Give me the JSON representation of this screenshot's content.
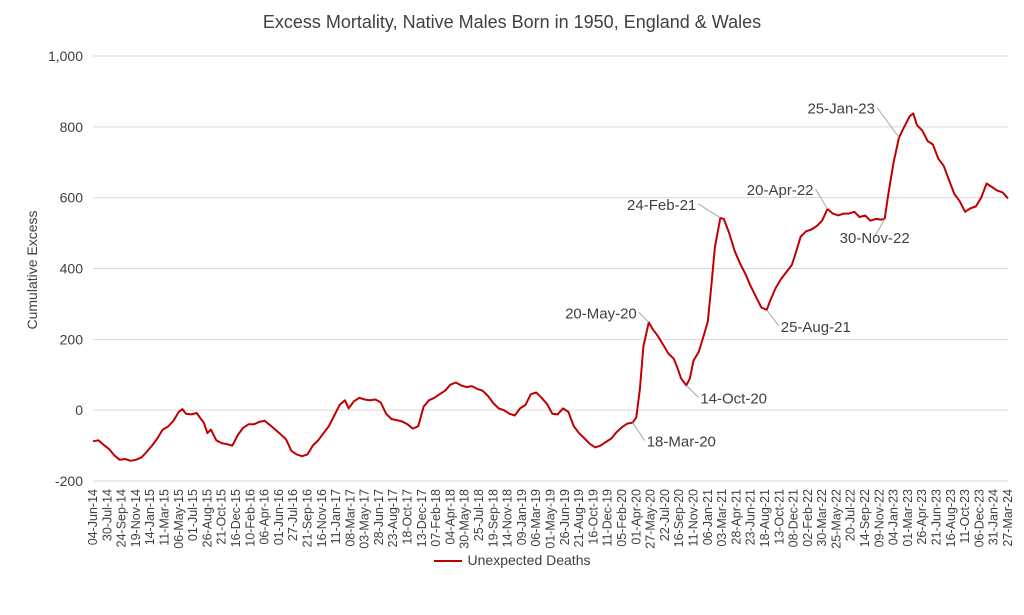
{
  "colors": {
    "series": "#c00000",
    "grid": "#d9d9d9",
    "text": "#404040",
    "leader": "#a6a6a6"
  },
  "chart_data": {
    "type": "line",
    "title": "Excess Mortality, Native Males Born in 1950, England & Wales",
    "xlabel": "",
    "ylabel": "Cumulative Excess",
    "ylim": [
      -200,
      1000
    ],
    "yticks": [
      -200,
      0,
      200,
      400,
      600,
      800,
      1000
    ],
    "ytick_labels": [
      "-200",
      "0",
      "200",
      "400",
      "600",
      "800",
      "1,000"
    ],
    "grid": true,
    "legend": "bottom",
    "x_range": [
      "2014-06-04",
      "2024-03-27"
    ],
    "x_tick_labels": [
      "04-Jun-14",
      "30-Jul-14",
      "24-Sep-14",
      "19-Nov-14",
      "14-Jan-15",
      "11-Mar-15",
      "06-May-15",
      "01-Jul-15",
      "26-Aug-15",
      "21-Oct-15",
      "16-Dec-15",
      "10-Feb-16",
      "06-Apr-16",
      "01-Jun-16",
      "27-Jul-16",
      "21-Sep-16",
      "16-Nov-16",
      "11-Jan-17",
      "08-Mar-17",
      "03-May-17",
      "28-Jun-17",
      "23-Aug-17",
      "18-Oct-17",
      "13-Dec-17",
      "07-Feb-18",
      "04-Apr-18",
      "30-May-18",
      "25-Jul-18",
      "19-Sep-18",
      "14-Nov-18",
      "09-Jan-19",
      "06-Mar-19",
      "01-May-19",
      "26-Jun-19",
      "21-Aug-19",
      "16-Oct-19",
      "11-Dec-19",
      "05-Feb-20",
      "01-Apr-20",
      "27-May-20",
      "22-Jul-20",
      "16-Sep-20",
      "11-Nov-20",
      "06-Jan-21",
      "03-Mar-21",
      "28-Apr-21",
      "23-Jun-21",
      "18-Aug-21",
      "13-Oct-21",
      "08-Dec-21",
      "02-Feb-22",
      "30-Mar-22",
      "25-May-22",
      "20-Jul-22",
      "14-Sep-22",
      "09-Nov-22",
      "04-Jan-23",
      "01-Mar-23",
      "26-Apr-23",
      "21-Jun-23",
      "16-Aug-23",
      "11-Oct-23",
      "06-Dec-23",
      "31-Jan-24",
      "27-Mar-24"
    ],
    "series": [
      {
        "name": "Unexpected Deaths",
        "points": [
          [
            "2014-06-04",
            -88
          ],
          [
            "2014-06-25",
            -85
          ],
          [
            "2014-07-16",
            -98
          ],
          [
            "2014-08-06",
            -110
          ],
          [
            "2014-08-27",
            -128
          ],
          [
            "2014-09-17",
            -140
          ],
          [
            "2014-10-08",
            -138
          ],
          [
            "2014-10-29",
            -143
          ],
          [
            "2014-11-19",
            -140
          ],
          [
            "2014-12-10",
            -134
          ],
          [
            "2014-12-31",
            -118
          ],
          [
            "2015-01-21",
            -100
          ],
          [
            "2015-02-11",
            -80
          ],
          [
            "2015-03-04",
            -55
          ],
          [
            "2015-03-25",
            -46
          ],
          [
            "2015-04-15",
            -30
          ],
          [
            "2015-05-06",
            -5
          ],
          [
            "2015-05-20",
            3
          ],
          [
            "2015-06-03",
            -10
          ],
          [
            "2015-06-24",
            -12
          ],
          [
            "2015-07-15",
            -8
          ],
          [
            "2015-07-29",
            -22
          ],
          [
            "2015-08-12",
            -35
          ],
          [
            "2015-08-26",
            -65
          ],
          [
            "2015-09-09",
            -55
          ],
          [
            "2015-09-30",
            -85
          ],
          [
            "2015-10-21",
            -93
          ],
          [
            "2015-11-11",
            -96
          ],
          [
            "2015-12-02",
            -100
          ],
          [
            "2015-12-23",
            -70
          ],
          [
            "2016-01-13",
            -50
          ],
          [
            "2016-02-03",
            -40
          ],
          [
            "2016-02-24",
            -40
          ],
          [
            "2016-03-16",
            -33
          ],
          [
            "2016-04-06",
            -30
          ],
          [
            "2016-04-27",
            -42
          ],
          [
            "2016-05-18",
            -55
          ],
          [
            "2016-06-08",
            -68
          ],
          [
            "2016-06-29",
            -82
          ],
          [
            "2016-07-20",
            -115
          ],
          [
            "2016-08-10",
            -125
          ],
          [
            "2016-08-31",
            -130
          ],
          [
            "2016-09-21",
            -125
          ],
          [
            "2016-10-12",
            -100
          ],
          [
            "2016-11-02",
            -85
          ],
          [
            "2016-11-23",
            -65
          ],
          [
            "2016-12-14",
            -45
          ],
          [
            "2017-01-04",
            -15
          ],
          [
            "2017-01-25",
            15
          ],
          [
            "2017-02-15",
            28
          ],
          [
            "2017-03-01",
            5
          ],
          [
            "2017-03-22",
            25
          ],
          [
            "2017-04-12",
            35
          ],
          [
            "2017-05-03",
            30
          ],
          [
            "2017-05-24",
            28
          ],
          [
            "2017-06-14",
            30
          ],
          [
            "2017-07-05",
            22
          ],
          [
            "2017-07-26",
            -10
          ],
          [
            "2017-08-16",
            -25
          ],
          [
            "2017-09-06",
            -28
          ],
          [
            "2017-09-27",
            -32
          ],
          [
            "2017-10-18",
            -40
          ],
          [
            "2017-11-08",
            -52
          ],
          [
            "2017-11-29",
            -45
          ],
          [
            "2017-12-20",
            10
          ],
          [
            "2018-01-10",
            28
          ],
          [
            "2018-01-31",
            35
          ],
          [
            "2018-02-21",
            45
          ],
          [
            "2018-03-14",
            55
          ],
          [
            "2018-04-04",
            72
          ],
          [
            "2018-04-25",
            78
          ],
          [
            "2018-05-16",
            70
          ],
          [
            "2018-06-06",
            65
          ],
          [
            "2018-06-27",
            68
          ],
          [
            "2018-07-18",
            60
          ],
          [
            "2018-08-08",
            55
          ],
          [
            "2018-08-29",
            40
          ],
          [
            "2018-09-19",
            20
          ],
          [
            "2018-10-10",
            5
          ],
          [
            "2018-10-31",
            0
          ],
          [
            "2018-11-21",
            -10
          ],
          [
            "2018-12-12",
            -15
          ],
          [
            "2019-01-02",
            5
          ],
          [
            "2019-01-23",
            15
          ],
          [
            "2019-02-13",
            45
          ],
          [
            "2019-03-06",
            50
          ],
          [
            "2019-03-27",
            35
          ],
          [
            "2019-04-17",
            18
          ],
          [
            "2019-05-08",
            -10
          ],
          [
            "2019-05-29",
            -12
          ],
          [
            "2019-06-19",
            5
          ],
          [
            "2019-07-10",
            -5
          ],
          [
            "2019-07-31",
            -45
          ],
          [
            "2019-08-21",
            -65
          ],
          [
            "2019-09-11",
            -80
          ],
          [
            "2019-10-02",
            -95
          ],
          [
            "2019-10-23",
            -105
          ],
          [
            "2019-11-13",
            -100
          ],
          [
            "2019-12-04",
            -90
          ],
          [
            "2019-12-25",
            -80
          ],
          [
            "2020-01-15",
            -62
          ],
          [
            "2020-02-05",
            -48
          ],
          [
            "2020-02-26",
            -38
          ],
          [
            "2020-03-18",
            -35
          ],
          [
            "2020-04-01",
            -20
          ],
          [
            "2020-04-15",
            60
          ],
          [
            "2020-04-29",
            180
          ],
          [
            "2020-05-20",
            248
          ],
          [
            "2020-06-03",
            230
          ],
          [
            "2020-06-24",
            210
          ],
          [
            "2020-07-15",
            185
          ],
          [
            "2020-08-05",
            160
          ],
          [
            "2020-08-26",
            145
          ],
          [
            "2020-09-09",
            120
          ],
          [
            "2020-09-23",
            90
          ],
          [
            "2020-10-14",
            70
          ],
          [
            "2020-10-28",
            90
          ],
          [
            "2020-11-11",
            140
          ],
          [
            "2020-12-02",
            165
          ],
          [
            "2020-12-23",
            215
          ],
          [
            "2021-01-06",
            250
          ],
          [
            "2021-01-20",
            350
          ],
          [
            "2021-02-03",
            460
          ],
          [
            "2021-02-24",
            543
          ],
          [
            "2021-03-10",
            540
          ],
          [
            "2021-03-31",
            500
          ],
          [
            "2021-04-21",
            450
          ],
          [
            "2021-05-12",
            415
          ],
          [
            "2021-06-02",
            385
          ],
          [
            "2021-06-23",
            350
          ],
          [
            "2021-07-14",
            320
          ],
          [
            "2021-08-04",
            290
          ],
          [
            "2021-08-25",
            283
          ],
          [
            "2021-09-08",
            310
          ],
          [
            "2021-09-29",
            345
          ],
          [
            "2021-10-20",
            370
          ],
          [
            "2021-11-10",
            390
          ],
          [
            "2021-12-01",
            410
          ],
          [
            "2021-12-15",
            440
          ],
          [
            "2022-01-05",
            490
          ],
          [
            "2022-01-26",
            505
          ],
          [
            "2022-02-16",
            510
          ],
          [
            "2022-03-09",
            520
          ],
          [
            "2022-03-30",
            535
          ],
          [
            "2022-04-20",
            568
          ],
          [
            "2022-05-11",
            555
          ],
          [
            "2022-06-01",
            550
          ],
          [
            "2022-06-22",
            555
          ],
          [
            "2022-07-13",
            555
          ],
          [
            "2022-08-03",
            560
          ],
          [
            "2022-08-24",
            545
          ],
          [
            "2022-09-14",
            550
          ],
          [
            "2022-10-05",
            535
          ],
          [
            "2022-10-26",
            540
          ],
          [
            "2022-11-16",
            538
          ],
          [
            "2022-11-30",
            540
          ],
          [
            "2022-12-14",
            610
          ],
          [
            "2023-01-04",
            700
          ],
          [
            "2023-01-25",
            770
          ],
          [
            "2023-02-15",
            800
          ],
          [
            "2023-03-08",
            830
          ],
          [
            "2023-03-22",
            838
          ],
          [
            "2023-04-05",
            805
          ],
          [
            "2023-04-26",
            790
          ],
          [
            "2023-05-17",
            760
          ],
          [
            "2023-06-07",
            750
          ],
          [
            "2023-06-28",
            710
          ],
          [
            "2023-07-19",
            690
          ],
          [
            "2023-08-09",
            650
          ],
          [
            "2023-08-30",
            610
          ],
          [
            "2023-09-20",
            590
          ],
          [
            "2023-10-11",
            560
          ],
          [
            "2023-11-01",
            570
          ],
          [
            "2023-11-22",
            575
          ],
          [
            "2023-12-13",
            600
          ],
          [
            "2024-01-03",
            640
          ],
          [
            "2024-01-24",
            630
          ],
          [
            "2024-02-14",
            620
          ],
          [
            "2024-03-06",
            615
          ],
          [
            "2024-03-27",
            598
          ]
        ]
      }
    ],
    "annotations": [
      {
        "label": "18-Mar-20",
        "x": "2020-03-18",
        "y": -35
      },
      {
        "label": "20-May-20",
        "x": "2020-05-20",
        "y": 248
      },
      {
        "label": "14-Oct-20",
        "x": "2020-10-14",
        "y": 70
      },
      {
        "label": "24-Feb-21",
        "x": "2021-02-24",
        "y": 543
      },
      {
        "label": "25-Aug-21",
        "x": "2021-08-25",
        "y": 283
      },
      {
        "label": "20-Apr-22",
        "x": "2022-04-20",
        "y": 568
      },
      {
        "label": "30-Nov-22",
        "x": "2022-11-30",
        "y": 540
      },
      {
        "label": "25-Jan-23",
        "x": "2023-01-25",
        "y": 770
      }
    ]
  }
}
